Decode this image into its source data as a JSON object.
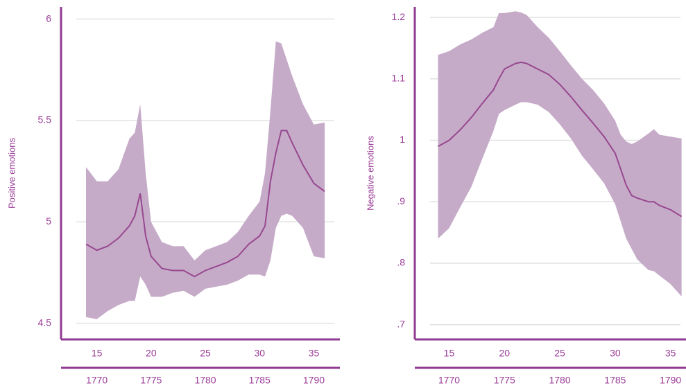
{
  "chart_data": [
    {
      "type": "line",
      "ylabel": "Positive emotions",
      "x": [
        14,
        15,
        16,
        17,
        18,
        18.5,
        19,
        19.5,
        20,
        21,
        22,
        23,
        24,
        25,
        26,
        27,
        28,
        29,
        30,
        30.5,
        31,
        31.5,
        32,
        32.5,
        33,
        34,
        35,
        36
      ],
      "values": [
        4.89,
        4.86,
        4.88,
        4.92,
        4.98,
        5.03,
        5.14,
        4.93,
        4.83,
        4.77,
        4.76,
        4.76,
        4.73,
        4.76,
        4.78,
        4.8,
        4.83,
        4.89,
        4.93,
        4.98,
        5.2,
        5.34,
        5.45,
        5.45,
        5.39,
        5.28,
        5.19,
        5.15
      ],
      "upper": [
        5.27,
        5.2,
        5.2,
        5.26,
        5.41,
        5.44,
        5.58,
        5.24,
        5.0,
        4.9,
        4.88,
        4.88,
        4.81,
        4.86,
        4.88,
        4.9,
        4.95,
        5.03,
        5.1,
        5.24,
        5.55,
        5.89,
        5.88,
        5.8,
        5.72,
        5.58,
        5.48,
        5.49
      ],
      "lower": [
        4.53,
        4.52,
        4.56,
        4.59,
        4.61,
        4.61,
        4.73,
        4.69,
        4.63,
        4.63,
        4.65,
        4.66,
        4.63,
        4.67,
        4.68,
        4.69,
        4.71,
        4.74,
        4.74,
        4.73,
        4.81,
        4.97,
        5.03,
        5.04,
        5.03,
        4.97,
        4.83,
        4.82
      ],
      "color": "#97488f",
      "band_color": "#c6abc9",
      "xlim": [
        11.7,
        37.4
      ],
      "x2lim": [
        1766.7,
        1792.4
      ],
      "ylim": [
        4.42,
        6.06
      ],
      "xticks": [
        15,
        20,
        25,
        30,
        35
      ],
      "x2ticks": [
        1770,
        1775,
        1780,
        1785,
        1790
      ],
      "yticks": [
        4.5,
        5,
        5.5,
        6
      ],
      "grid": true
    },
    {
      "type": "line",
      "ylabel": "Negative emotions",
      "x": [
        14,
        15,
        16,
        17,
        18,
        19,
        19.5,
        20,
        21,
        21.5,
        22,
        23,
        24,
        25,
        26,
        27,
        28,
        29,
        30,
        30.5,
        31,
        31.5,
        32,
        33,
        33.5,
        34,
        35,
        36
      ],
      "values": [
        0.99,
        1.0,
        1.017,
        1.037,
        1.06,
        1.082,
        1.1,
        1.116,
        1.125,
        1.127,
        1.125,
        1.116,
        1.107,
        1.091,
        1.071,
        1.049,
        1.028,
        1.006,
        0.979,
        0.953,
        0.927,
        0.91,
        0.906,
        0.9,
        0.9,
        0.894,
        0.887,
        0.876
      ],
      "upper": [
        1.139,
        1.145,
        1.156,
        1.164,
        1.175,
        1.184,
        1.207,
        1.207,
        1.21,
        1.208,
        1.204,
        1.184,
        1.167,
        1.145,
        1.122,
        1.1,
        1.082,
        1.06,
        1.032,
        1.009,
        0.998,
        0.994,
        0.998,
        1.011,
        1.018,
        1.009,
        1.006,
        1.003
      ],
      "lower": [
        0.84,
        0.857,
        0.891,
        0.924,
        0.97,
        1.015,
        1.043,
        1.049,
        1.058,
        1.062,
        1.062,
        1.058,
        1.046,
        1.026,
        1.003,
        0.975,
        0.953,
        0.93,
        0.896,
        0.868,
        0.84,
        0.823,
        0.806,
        0.789,
        0.787,
        0.78,
        0.766,
        0.746
      ],
      "color": "#97488f",
      "band_color": "#c6abc9",
      "xlim": [
        11.9,
        36.4
      ],
      "x2lim": [
        1766.9,
        1791.4
      ],
      "ylim": [
        0.676,
        1.217
      ],
      "xticks": [
        15,
        20,
        25,
        30,
        35
      ],
      "x2ticks": [
        1770,
        1775,
        1780,
        1785,
        1790
      ],
      "yticks": [
        {
          "value": 0.7,
          "label": ".7"
        },
        {
          "value": 0.8,
          "label": ".8"
        },
        {
          "value": 0.9,
          "label": ".9"
        },
        1,
        1.1,
        1.2
      ],
      "grid": true
    }
  ]
}
